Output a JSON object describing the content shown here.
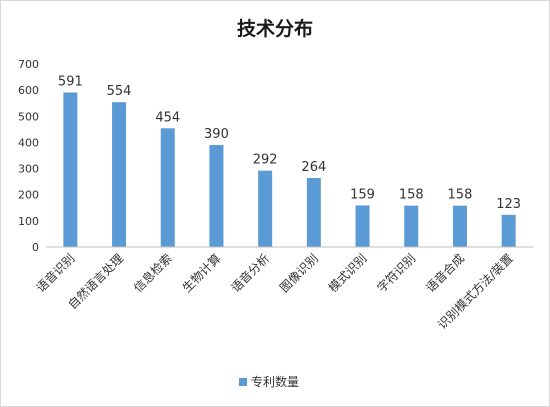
{
  "chart_data": {
    "type": "bar",
    "title": "技术分布",
    "xlabel": "",
    "ylabel": "",
    "categories": [
      "语音识别",
      "自然语言处理",
      "信息检索",
      "生物计算",
      "语音分析",
      "图像识别",
      "模式识别",
      "字符识别",
      "语音合成",
      "识别模式方法/装置"
    ],
    "series": [
      {
        "name": "专利数量",
        "values": [
          591,
          554,
          454,
          390,
          292,
          264,
          159,
          158,
          158,
          123
        ]
      }
    ],
    "ylim": [
      0,
      700
    ],
    "yticks": [
      0,
      100,
      200,
      300,
      400,
      500,
      600,
      700
    ],
    "grid": false,
    "legend": "bottom",
    "data_labels": true,
    "colors": {
      "bar": "#5b9bd5",
      "axis": "#bfbfbf",
      "text": "#333333"
    }
  }
}
